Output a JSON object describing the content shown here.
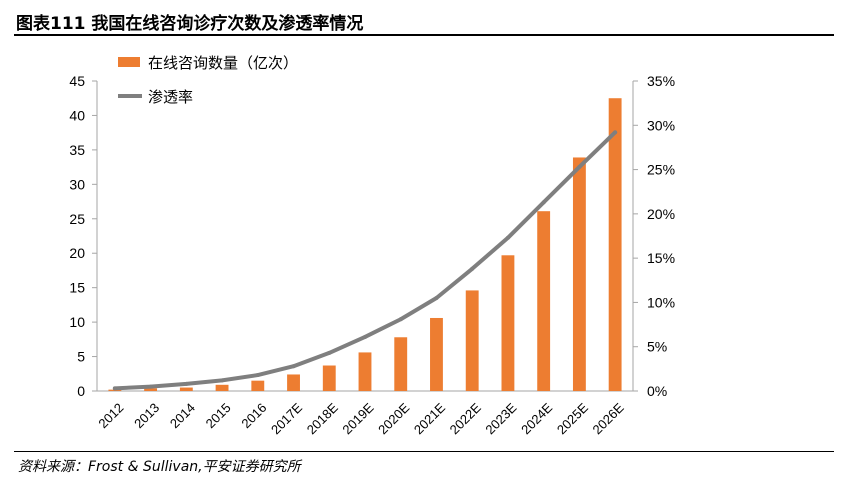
{
  "header": {
    "title": "图表111  我国在线咨询诊疗次数及渗透率情况"
  },
  "footer": {
    "source": "资料来源：Frost & Sullivan,平安证券研究所"
  },
  "colors": {
    "bar": "#ED7D31",
    "line": "#7F7F7F",
    "axis": "#A6A6A6"
  },
  "chart_data": {
    "type": "bar",
    "categories": [
      "2012",
      "2013",
      "2014",
      "2015",
      "2016",
      "2017E",
      "2018E",
      "2019E",
      "2020E",
      "2021E",
      "2022E",
      "2023E",
      "2024E",
      "2025E",
      "2026E"
    ],
    "series": [
      {
        "name": "在线咨询数量（亿次）",
        "type": "bar",
        "axis": "left",
        "values": [
          0.2,
          0.4,
          0.5,
          0.9,
          1.5,
          2.4,
          3.7,
          5.6,
          7.8,
          10.6,
          14.6,
          19.7,
          26.1,
          33.9,
          42.5
        ]
      },
      {
        "name": "渗透率",
        "type": "line",
        "axis": "right",
        "values": [
          0.3,
          0.5,
          0.8,
          1.2,
          1.8,
          2.8,
          4.3,
          6.1,
          8.1,
          10.5,
          13.8,
          17.3,
          21.3,
          25.3,
          29.2
        ]
      }
    ],
    "y_left": {
      "range": [
        0,
        45
      ],
      "ticks": [
        "0",
        "5",
        "10",
        "15",
        "20",
        "25",
        "30",
        "35",
        "40",
        "45"
      ]
    },
    "y_right": {
      "range": [
        0,
        35
      ],
      "ticks": [
        "0%",
        "5%",
        "10%",
        "15%",
        "20%",
        "25%",
        "30%",
        "35%"
      ]
    },
    "legend": {
      "position": "top-left"
    },
    "grid": false
  }
}
